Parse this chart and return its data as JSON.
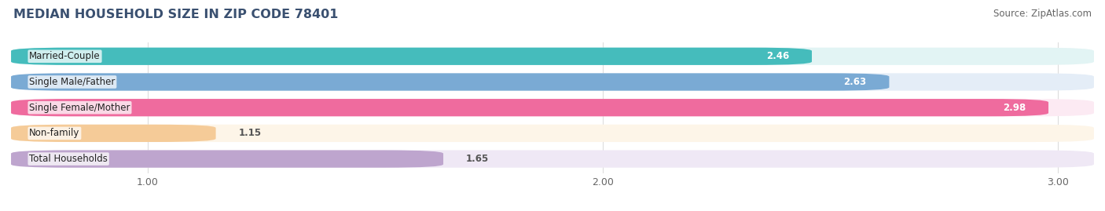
{
  "title": "MEDIAN HOUSEHOLD SIZE IN ZIP CODE 78401",
  "source": "Source: ZipAtlas.com",
  "categories": [
    "Married-Couple",
    "Single Male/Father",
    "Single Female/Mother",
    "Non-family",
    "Total Households"
  ],
  "values": [
    2.46,
    2.63,
    2.98,
    1.15,
    1.65
  ],
  "bar_colors": [
    "#45BCBC",
    "#7AAAD4",
    "#EF6B9E",
    "#F5CB98",
    "#BEA5CE"
  ],
  "bar_bg_colors": [
    "#E2F4F4",
    "#E4EDF7",
    "#FCEAF3",
    "#FDF5E8",
    "#EFE8F5"
  ],
  "xmin": 0.7,
  "xmax": 3.08,
  "xticks": [
    1.0,
    2.0,
    3.0
  ],
  "xtick_labels": [
    "1.00",
    "2.00",
    "3.00"
  ],
  "title_color": "#3A5070",
  "title_fontsize": 11.5,
  "source_fontsize": 8.5,
  "label_fontsize": 8.5,
  "value_fontsize": 8.5,
  "background_color": "#FFFFFF",
  "grid_color": "#DDDDDD",
  "value_inside_color": "#FFFFFF",
  "value_outside_color": "#555555"
}
